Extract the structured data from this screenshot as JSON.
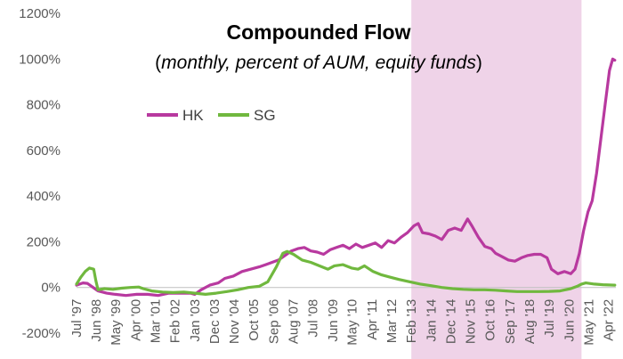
{
  "chart_data": {
    "type": "line",
    "title": "Compounded Flow",
    "subtitle_open": "(",
    "subtitle_italic": "monthly, percent of AUM, equity funds",
    "subtitle_close": ")",
    "ylim": [
      -200,
      1200
    ],
    "yticks": [
      "-200%",
      "0%",
      "200%",
      "400%",
      "600%",
      "800%",
      "1000%",
      "1200%"
    ],
    "ytick_values": [
      -200,
      0,
      200,
      400,
      600,
      800,
      1000,
      1200
    ],
    "xlim": [
      1997.5,
      2022.6
    ],
    "xticks": [
      "Jul '97",
      "Jun '98",
      "May '99",
      "Apr '00",
      "Mar '01",
      "Feb '02",
      "Jan '03",
      "Dec '03",
      "Nov '04",
      "Oct '05",
      "Sep '06",
      "Aug '07",
      "Jul '08",
      "Jun '09",
      "May '10",
      "Apr '11",
      "Mar '12",
      "Feb '13",
      "Jan '14",
      "Dec '14",
      "Nov '15",
      "Oct '16",
      "Sep '17",
      "Aug '18",
      "Jul '19",
      "Jun '20",
      "May '21",
      "Apr '22"
    ],
    "xtick_values": [
      1997.5,
      1998.42,
      1999.33,
      2000.25,
      2001.17,
      2002.08,
      2003.0,
      2003.92,
      2004.83,
      2005.75,
      2006.67,
      2007.58,
      2008.5,
      2009.42,
      2010.33,
      2011.25,
      2012.17,
      2013.08,
      2014.0,
      2014.92,
      2015.83,
      2016.75,
      2017.67,
      2018.58,
      2019.5,
      2020.42,
      2021.33,
      2022.25
    ],
    "shaded_region": {
      "x_start": 2013.08,
      "x_end": 2021.0,
      "color": "#efd3e8"
    },
    "legend_position": "upper-left",
    "series": [
      {
        "name": "HK",
        "color": "#b8399f",
        "points": [
          [
            1997.5,
            10
          ],
          [
            1997.8,
            20
          ],
          [
            1998.0,
            18
          ],
          [
            1998.2,
            5
          ],
          [
            1998.5,
            -15
          ],
          [
            1998.9,
            -25
          ],
          [
            1999.3,
            -30
          ],
          [
            1999.8,
            -35
          ],
          [
            2000.3,
            -30
          ],
          [
            2000.8,
            -30
          ],
          [
            2001.3,
            -35
          ],
          [
            2001.8,
            -25
          ],
          [
            2002.3,
            -25
          ],
          [
            2002.8,
            -25
          ],
          [
            2003.0,
            -30
          ],
          [
            2003.3,
            -10
          ],
          [
            2003.7,
            10
          ],
          [
            2004.1,
            20
          ],
          [
            2004.4,
            40
          ],
          [
            2004.8,
            50
          ],
          [
            2005.2,
            70
          ],
          [
            2005.6,
            80
          ],
          [
            2006.0,
            90
          ],
          [
            2006.3,
            100
          ],
          [
            2006.6,
            110
          ],
          [
            2006.9,
            120
          ],
          [
            2007.2,
            140
          ],
          [
            2007.5,
            160
          ],
          [
            2007.8,
            170
          ],
          [
            2008.1,
            175
          ],
          [
            2008.4,
            160
          ],
          [
            2008.7,
            155
          ],
          [
            2009.0,
            145
          ],
          [
            2009.3,
            165
          ],
          [
            2009.6,
            175
          ],
          [
            2009.9,
            185
          ],
          [
            2010.2,
            170
          ],
          [
            2010.5,
            190
          ],
          [
            2010.8,
            175
          ],
          [
            2011.1,
            185
          ],
          [
            2011.4,
            195
          ],
          [
            2011.7,
            175
          ],
          [
            2012.0,
            205
          ],
          [
            2012.3,
            195
          ],
          [
            2012.6,
            220
          ],
          [
            2012.9,
            240
          ],
          [
            2013.2,
            270
          ],
          [
            2013.4,
            280
          ],
          [
            2013.6,
            240
          ],
          [
            2013.9,
            235
          ],
          [
            2014.2,
            225
          ],
          [
            2014.5,
            210
          ],
          [
            2014.8,
            250
          ],
          [
            2015.1,
            260
          ],
          [
            2015.4,
            250
          ],
          [
            2015.7,
            300
          ],
          [
            2015.9,
            270
          ],
          [
            2016.2,
            220
          ],
          [
            2016.5,
            180
          ],
          [
            2016.8,
            170
          ],
          [
            2017.0,
            150
          ],
          [
            2017.3,
            135
          ],
          [
            2017.6,
            120
          ],
          [
            2017.9,
            115
          ],
          [
            2018.2,
            130
          ],
          [
            2018.5,
            140
          ],
          [
            2018.8,
            145
          ],
          [
            2019.1,
            145
          ],
          [
            2019.4,
            130
          ],
          [
            2019.6,
            80
          ],
          [
            2019.9,
            60
          ],
          [
            2020.2,
            70
          ],
          [
            2020.5,
            60
          ],
          [
            2020.7,
            80
          ],
          [
            2020.9,
            150
          ],
          [
            2021.1,
            250
          ],
          [
            2021.3,
            330
          ],
          [
            2021.5,
            380
          ],
          [
            2021.7,
            500
          ],
          [
            2021.9,
            650
          ],
          [
            2022.1,
            800
          ],
          [
            2022.3,
            950
          ],
          [
            2022.45,
            1000
          ],
          [
            2022.55,
            995
          ]
        ]
      },
      {
        "name": "SG",
        "color": "#70b83e",
        "points": [
          [
            1997.5,
            15
          ],
          [
            1997.7,
            45
          ],
          [
            1997.9,
            70
          ],
          [
            1998.1,
            85
          ],
          [
            1998.3,
            80
          ],
          [
            1998.4,
            30
          ],
          [
            1998.5,
            -10
          ],
          [
            1998.8,
            -5
          ],
          [
            1999.2,
            -8
          ],
          [
            1999.6,
            -3
          ],
          [
            2000.0,
            0
          ],
          [
            2000.4,
            2
          ],
          [
            2000.6,
            -5
          ],
          [
            2001.0,
            -15
          ],
          [
            2001.5,
            -20
          ],
          [
            2002.0,
            -22
          ],
          [
            2002.5,
            -20
          ],
          [
            2003.0,
            -25
          ],
          [
            2003.5,
            -30
          ],
          [
            2004.0,
            -25
          ],
          [
            2004.5,
            -18
          ],
          [
            2005.0,
            -10
          ],
          [
            2005.5,
            0
          ],
          [
            2006.0,
            5
          ],
          [
            2006.4,
            25
          ],
          [
            2006.8,
            90
          ],
          [
            2007.1,
            150
          ],
          [
            2007.3,
            158
          ],
          [
            2007.6,
            145
          ],
          [
            2008.0,
            120
          ],
          [
            2008.4,
            110
          ],
          [
            2008.8,
            95
          ],
          [
            2009.2,
            80
          ],
          [
            2009.5,
            95
          ],
          [
            2009.9,
            100
          ],
          [
            2010.3,
            85
          ],
          [
            2010.6,
            80
          ],
          [
            2010.9,
            95
          ],
          [
            2011.3,
            70
          ],
          [
            2011.7,
            55
          ],
          [
            2012.1,
            45
          ],
          [
            2012.5,
            35
          ],
          [
            2013.0,
            25
          ],
          [
            2013.5,
            15
          ],
          [
            2014.0,
            8
          ],
          [
            2014.5,
            0
          ],
          [
            2015.0,
            -5
          ],
          [
            2015.5,
            -8
          ],
          [
            2016.0,
            -10
          ],
          [
            2016.5,
            -10
          ],
          [
            2017.0,
            -12
          ],
          [
            2017.5,
            -15
          ],
          [
            2018.0,
            -18
          ],
          [
            2018.5,
            -18
          ],
          [
            2019.0,
            -18
          ],
          [
            2019.5,
            -17
          ],
          [
            2020.0,
            -15
          ],
          [
            2020.5,
            -5
          ],
          [
            2020.8,
            5
          ],
          [
            2021.0,
            15
          ],
          [
            2021.2,
            20
          ],
          [
            2021.6,
            15
          ],
          [
            2022.0,
            12
          ],
          [
            2022.55,
            10
          ]
        ]
      }
    ]
  }
}
